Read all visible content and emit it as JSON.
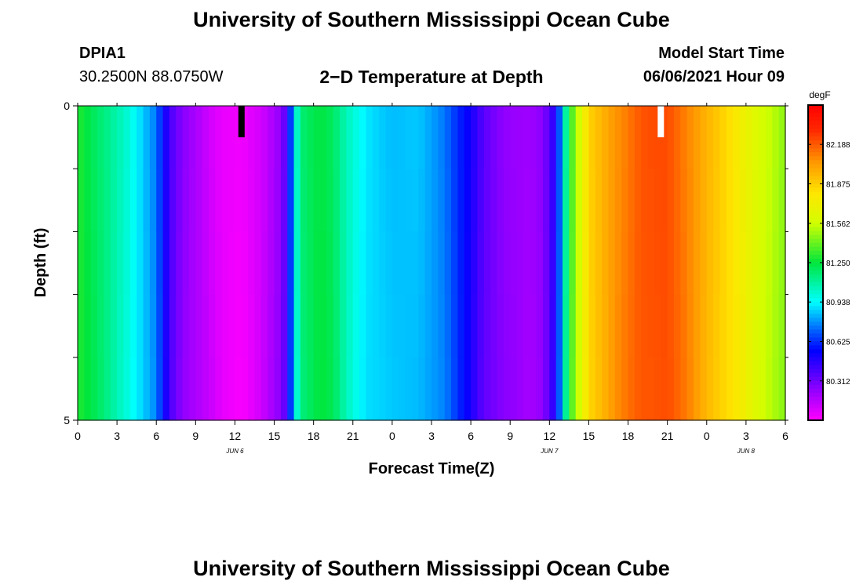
{
  "header": {
    "title_top": "University of Southern Mississippi Ocean Cube",
    "title_bottom": "University of Southern Mississippi Ocean Cube",
    "station_id": "DPIA1",
    "station_coords": "30.2500N  88.0750W",
    "plot_title": "2−D Temperature at Depth",
    "model_start_label": "Model Start Time",
    "model_start_value": "06/06/2021 Hour 09"
  },
  "chart_data": {
    "type": "heatmap",
    "title": "2−D Temperature at Depth",
    "xlabel": "Forecast Time(Z)",
    "ylabel": "Depth (ft)",
    "x_tick_labels": [
      "0",
      "3",
      "6",
      "9",
      "12",
      "15",
      "18",
      "21",
      "0",
      "3",
      "6",
      "9",
      "12",
      "15",
      "18",
      "21",
      "0",
      "3",
      "6"
    ],
    "x_range_hours": [
      0,
      54
    ],
    "date_labels": [
      {
        "text": "JUN 6",
        "hour": 12
      },
      {
        "text": "JUN 7",
        "hour": 36
      },
      {
        "text": "JUN 8",
        "hour": 51
      }
    ],
    "y_tick_labels": [
      "0",
      "5"
    ],
    "y_range_ft": [
      0,
      5
    ],
    "colorbar": {
      "units": "degF",
      "min": 80.0,
      "max": 82.5,
      "tick_values": [
        "82.188",
        "81.875",
        "81.562",
        "81.250",
        "80.938",
        "80.625",
        "80.312"
      ]
    },
    "markers": [
      {
        "hour": 12.5,
        "color": "#000000"
      },
      {
        "hour": 44.5,
        "color": "#ffffff"
      }
    ],
    "temperature_by_hour": [
      {
        "hour": 0,
        "value": 81.3
      },
      {
        "hour": 2,
        "value": 81.15
      },
      {
        "hour": 4,
        "value": 80.98
      },
      {
        "hour": 6,
        "value": 80.75
      },
      {
        "hour": 7,
        "value": 80.4
      },
      {
        "hour": 8,
        "value": 80.25
      },
      {
        "hour": 9.5,
        "value": 80.15
      },
      {
        "hour": 11,
        "value": 80.05
      },
      {
        "hour": 12.5,
        "value": 80.02
      },
      {
        "hour": 14,
        "value": 80.1
      },
      {
        "hour": 15.5,
        "value": 80.25
      },
      {
        "hour": 16.0,
        "value": 80.4
      },
      {
        "hour": 16.5,
        "value": 80.9
      },
      {
        "hour": 17.0,
        "value": 81.15
      },
      {
        "hour": 18.5,
        "value": 81.25
      },
      {
        "hour": 19.5,
        "value": 81.2
      },
      {
        "hour": 20.5,
        "value": 81.05
      },
      {
        "hour": 22,
        "value": 80.9
      },
      {
        "hour": 24,
        "value": 80.85
      },
      {
        "hour": 26,
        "value": 80.85
      },
      {
        "hour": 28,
        "value": 80.75
      },
      {
        "hour": 30,
        "value": 80.5
      },
      {
        "hour": 31,
        "value": 80.35
      },
      {
        "hour": 32.5,
        "value": 80.25
      },
      {
        "hour": 34.5,
        "value": 80.2
      },
      {
        "hour": 35.5,
        "value": 80.25
      },
      {
        "hour": 36.5,
        "value": 80.5
      },
      {
        "hour": 37,
        "value": 80.9
      },
      {
        "hour": 37.5,
        "value": 81.3
      },
      {
        "hour": 38.5,
        "value": 81.65
      },
      {
        "hour": 39,
        "value": 81.85
      },
      {
        "hour": 41,
        "value": 82.05
      },
      {
        "hour": 43,
        "value": 82.2
      },
      {
        "hour": 45,
        "value": 82.22
      },
      {
        "hour": 46.5,
        "value": 82.1
      },
      {
        "hour": 48,
        "value": 81.95
      },
      {
        "hour": 50,
        "value": 81.8
      },
      {
        "hour": 52,
        "value": 81.6
      },
      {
        "hour": 54,
        "value": 81.45
      }
    ]
  }
}
